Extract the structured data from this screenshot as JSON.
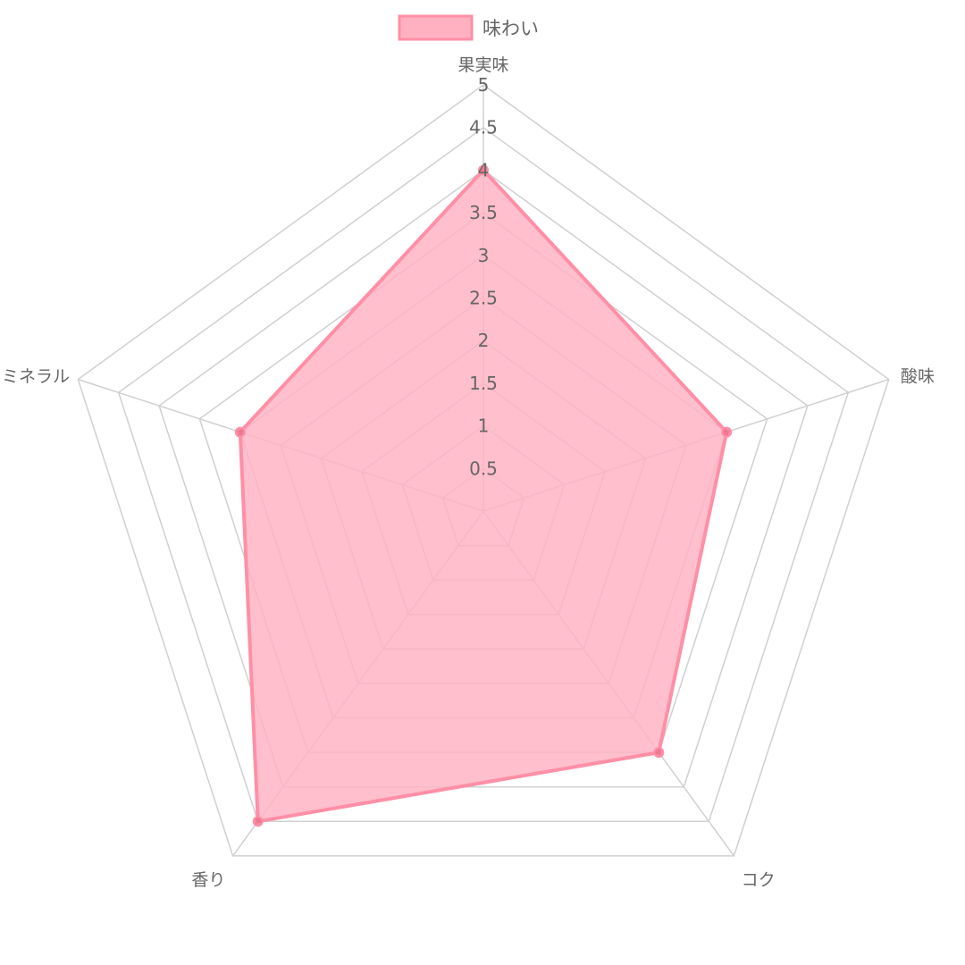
{
  "chart_data": {
    "type": "radar",
    "categories": [
      "果実味",
      "酸味",
      "コク",
      "香り",
      "ミネラル"
    ],
    "series": [
      {
        "name": "味わい",
        "values": [
          4,
          3,
          3.5,
          4.5,
          3
        ]
      }
    ],
    "ticks": [
      "0.5",
      "1",
      "1.5",
      "2",
      "2.5",
      "3",
      "3.5",
      "4",
      "4.5",
      "5"
    ],
    "rlim": [
      0,
      5
    ],
    "grid": true,
    "legend": "top",
    "colors": {
      "fill": "#ffb1c1",
      "stroke": "#ff8fa6",
      "point": "#f06f8c",
      "grid": "#d0d0d0",
      "text": "#666666"
    }
  }
}
